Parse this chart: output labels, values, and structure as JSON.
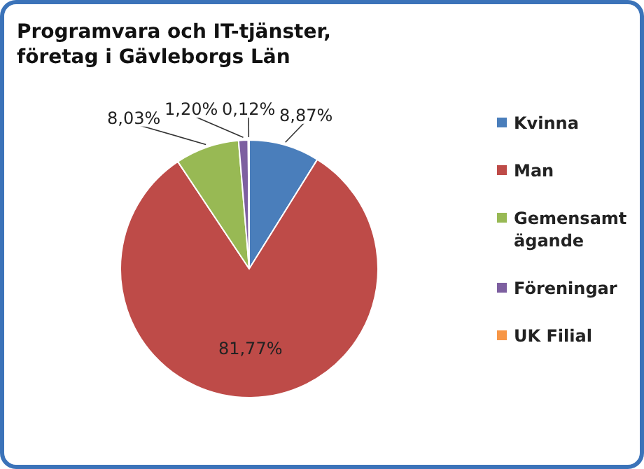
{
  "chart_data": {
    "type": "pie",
    "title": "Programvara och IT-tjänster, företag i Gävleborgs Län",
    "categories": [
      "Kvinna",
      "Man",
      "Gemensamt ägande",
      "Föreningar",
      "UK Filial"
    ],
    "values": [
      8.87,
      81.77,
      8.03,
      1.2,
      0.12
    ],
    "value_labels": [
      "8,87%",
      "81,77%",
      "8,03%",
      "1,20%",
      "0,12%"
    ],
    "colors": [
      "#4a7ebb",
      "#be4b48",
      "#98b954",
      "#7d5fa0",
      "#f79646"
    ],
    "legend": "right"
  }
}
